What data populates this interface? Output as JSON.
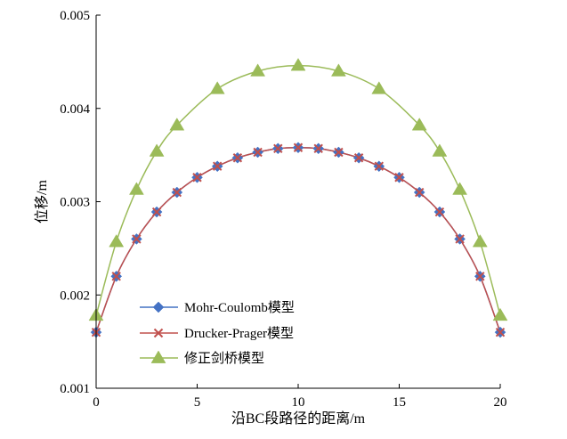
{
  "chart_data": {
    "type": "line",
    "xlabel": "沿BC段路径的距离/m",
    "ylabel": "位移/m",
    "xlim": [
      0,
      20
    ],
    "ylim": [
      0.001,
      0.005
    ],
    "xticks": [
      "0",
      "5",
      "10",
      "15",
      "20"
    ],
    "yticks": [
      "0.001",
      "0.002",
      "0.003",
      "0.004",
      "0.005"
    ],
    "grid": false,
    "legend_position": "lower-left",
    "series": [
      {
        "name": "Mohr-Coulomb模型",
        "color": "#4472C4",
        "marker": "diamond",
        "x": [
          0,
          1,
          2,
          3,
          4,
          5,
          6,
          7,
          8,
          9,
          10,
          11,
          12,
          13,
          14,
          15,
          16,
          17,
          18,
          19,
          20
        ],
        "y": [
          0.0016,
          0.0022,
          0.0026,
          0.00289,
          0.0031,
          0.00326,
          0.00338,
          0.00347,
          0.00353,
          0.00357,
          0.00358,
          0.00357,
          0.00353,
          0.00347,
          0.00338,
          0.00326,
          0.0031,
          0.00289,
          0.0026,
          0.0022,
          0.0016
        ]
      },
      {
        "name": "Drucker-Prager模型",
        "color": "#C0504D",
        "marker": "x",
        "x": [
          0,
          1,
          2,
          3,
          4,
          5,
          6,
          7,
          8,
          9,
          10,
          11,
          12,
          13,
          14,
          15,
          16,
          17,
          18,
          19,
          20
        ],
        "y": [
          0.0016,
          0.0022,
          0.0026,
          0.00289,
          0.0031,
          0.00326,
          0.00338,
          0.00347,
          0.00353,
          0.00357,
          0.00358,
          0.00357,
          0.00353,
          0.00347,
          0.00338,
          0.00326,
          0.0031,
          0.00289,
          0.0026,
          0.0022,
          0.0016
        ]
      },
      {
        "name": "修正剑桥模型",
        "color": "#9BBB59",
        "marker": "triangle",
        "x": [
          0,
          1,
          2,
          3,
          4,
          6,
          8,
          10,
          12,
          14,
          16,
          17,
          18,
          19,
          20
        ],
        "y": [
          0.00178,
          0.00257,
          0.00313,
          0.00354,
          0.00382,
          0.00421,
          0.0044,
          0.00446,
          0.0044,
          0.00421,
          0.00382,
          0.00354,
          0.00313,
          0.00257,
          0.00178
        ]
      }
    ]
  }
}
